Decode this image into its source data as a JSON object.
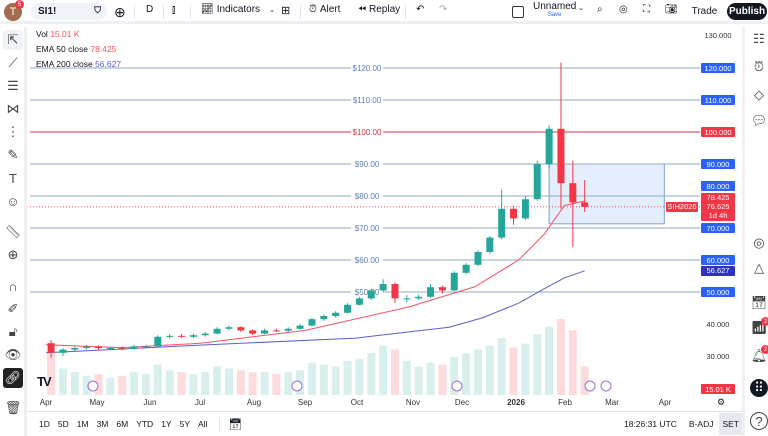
{
  "header": {
    "avatar_letter": "T",
    "avatar_badge": "5",
    "symbol": "SI1!",
    "interval": "D",
    "indicators": "Indicators",
    "alert": "Alert",
    "replay": "Replay",
    "layout_name": "Unnamed",
    "layout_save": "Save",
    "trade": "Trade",
    "publish": "Publish"
  },
  "legend": {
    "vol_label": "Vol",
    "vol_value": "15.01 K",
    "ema50_label": "EMA 50 close",
    "ema50_value": "78.425",
    "ema200_label": "EMA 200 close",
    "ema200_value": "56.627"
  },
  "colors": {
    "up": "#26a69a",
    "down": "#f23645",
    "ema50": "#f7525f",
    "ema200": "#5b5fc7",
    "hline": "#8fa9c4",
    "hline_red": "#d3343f",
    "box_fill": "#dbe7fb",
    "accent": "#2962ff"
  },
  "price_axis": {
    "ticks": [
      "130.000",
      "40.000",
      "30.000"
    ],
    "labels": [
      {
        "text": "120.000",
        "style": "blue",
        "price": 120
      },
      {
        "text": "110.000",
        "style": "blue",
        "price": 110
      },
      {
        "text": "100.000",
        "style": "red",
        "price": 100
      },
      {
        "text": "90.000",
        "style": "blue",
        "price": 90
      },
      {
        "text": "80.000",
        "style": "blue",
        "price": 80
      },
      {
        "text": "70.000",
        "style": "blue",
        "price": 70
      },
      {
        "text": "60.000",
        "style": "blue",
        "price": 60
      },
      {
        "text": "56.627",
        "style": "indigo",
        "price": 56.627
      },
      {
        "text": "50.000",
        "style": "blue",
        "price": 50
      }
    ],
    "last": {
      "ema50": "78.425",
      "price": "76.625",
      "countdown": "1d 4h",
      "contract": "SIH2026"
    },
    "volume": "15.01 K"
  },
  "hlines": [
    {
      "price": 120,
      "label": "$120.00"
    },
    {
      "price": 110,
      "label": "$110.00"
    },
    {
      "price": 100,
      "label": "$100.00",
      "red": true
    },
    {
      "price": 90,
      "label": "$90.00"
    },
    {
      "price": 80,
      "label": "$80.00"
    },
    {
      "price": 70,
      "label": "$70.00"
    },
    {
      "price": 60,
      "label": "$60.00"
    },
    {
      "price": 50,
      "label": "$50.00"
    }
  ],
  "rectangle": {
    "from": "2026-01-23",
    "to": "2026-04-01",
    "top": 90,
    "bottom": 71.3
  },
  "time_axis": [
    "Apr",
    "May",
    "Jun",
    "Jul",
    "Aug",
    "Sep",
    "Oct",
    "Nov",
    "Dec",
    "2026",
    "Feb",
    "Mar",
    "Apr"
  ],
  "bottom_bar": {
    "ranges": [
      "1D",
      "5D",
      "1M",
      "3M",
      "6M",
      "YTD",
      "1Y",
      "5Y",
      "All"
    ],
    "time": "18:26:31 UTC",
    "badj": "B-ADJ",
    "set": "SET"
  },
  "chart_data": {
    "type": "candlestick",
    "note_interval": "weekly approximation",
    "candles": [
      [
        "2025-04-04",
        34,
        35,
        29.5,
        31
      ],
      [
        "2025-04-11",
        31,
        32.5,
        30,
        32
      ],
      [
        "2025-04-18",
        32,
        33,
        31.5,
        32.5
      ],
      [
        "2025-04-25",
        32.5,
        33.5,
        32,
        33
      ],
      [
        "2025-05-02",
        33,
        33.3,
        32,
        32.5
      ],
      [
        "2025-05-09",
        32.5,
        33,
        32,
        32.5
      ],
      [
        "2025-05-16",
        32.5,
        33,
        31.8,
        32.3
      ],
      [
        "2025-05-23",
        32.3,
        33.5,
        32,
        33
      ],
      [
        "2025-05-30",
        33,
        33.5,
        32.5,
        33
      ],
      [
        "2025-06-06",
        33,
        36.5,
        33,
        36
      ],
      [
        "2025-06-13",
        36,
        36.8,
        35.5,
        36.3
      ],
      [
        "2025-06-20",
        36.3,
        36.8,
        35.5,
        36
      ],
      [
        "2025-06-27",
        36,
        37,
        35.6,
        36.5
      ],
      [
        "2025-07-04",
        36.5,
        37.5,
        36,
        37
      ],
      [
        "2025-07-11",
        37,
        39,
        36.8,
        38.5
      ],
      [
        "2025-07-18",
        38.5,
        39.5,
        38,
        39
      ],
      [
        "2025-07-25",
        39,
        39.3,
        37.5,
        38
      ],
      [
        "2025-08-01",
        38,
        38.3,
        36.5,
        37
      ],
      [
        "2025-08-08",
        37,
        38.5,
        36.8,
        38
      ],
      [
        "2025-08-15",
        38,
        38.5,
        37.5,
        37.9
      ],
      [
        "2025-08-22",
        37.9,
        39,
        37.5,
        38.5
      ],
      [
        "2025-08-29",
        38.5,
        40,
        38.2,
        39.5
      ],
      [
        "2025-09-05",
        39.5,
        42,
        39.3,
        41.5
      ],
      [
        "2025-09-12",
        41.5,
        43,
        41,
        42.5
      ],
      [
        "2025-09-19",
        42.5,
        44,
        42,
        43.5
      ],
      [
        "2025-09-26",
        43.5,
        46.5,
        43.3,
        46
      ],
      [
        "2025-10-03",
        46,
        48.5,
        45.8,
        48
      ],
      [
        "2025-10-10",
        48,
        51,
        47.5,
        50.5
      ],
      [
        "2025-10-17",
        50.5,
        54,
        50,
        52.5
      ],
      [
        "2025-10-24",
        52.5,
        53,
        46.5,
        48
      ],
      [
        "2025-10-31",
        48,
        49,
        46.8,
        48
      ],
      [
        "2025-11-07",
        48,
        49.2,
        47.5,
        48.5
      ],
      [
        "2025-11-14",
        48.5,
        52.5,
        48.2,
        51.5
      ],
      [
        "2025-11-21",
        51.5,
        52,
        49.5,
        50.5
      ],
      [
        "2025-11-28",
        50.5,
        56.5,
        50.3,
        56
      ],
      [
        "2025-12-05",
        56,
        59,
        55.5,
        58.5
      ],
      [
        "2025-12-12",
        58.5,
        63,
        58,
        62.5
      ],
      [
        "2025-12-19",
        62.5,
        67.5,
        62,
        67
      ],
      [
        "2025-12-26",
        67,
        82,
        66.5,
        76
      ],
      [
        "2026-01-02",
        76,
        77,
        71,
        73
      ],
      [
        "2026-01-09",
        73,
        80,
        72.5,
        79
      ],
      [
        "2026-01-16",
        79,
        91,
        78.5,
        90
      ],
      [
        "2026-01-23",
        90,
        102,
        88.5,
        101
      ],
      [
        "2026-01-30",
        101,
        121.6,
        76,
        84
      ],
      [
        "2026-02-06",
        84,
        91,
        64,
        78
      ],
      [
        "2026-02-13",
        78,
        85,
        75,
        76.6
      ]
    ],
    "volume_k": [
      22,
      14,
      12,
      10,
      11,
      9,
      10,
      12,
      11,
      16,
      13,
      12,
      11,
      12,
      15,
      14,
      13,
      12,
      12,
      11,
      12,
      13,
      17,
      16,
      15,
      18,
      19,
      22,
      26,
      24,
      18,
      15,
      17,
      16,
      20,
      22,
      24,
      26,
      30,
      25,
      27,
      32,
      36,
      40,
      34,
      15.01
    ],
    "ema50": [
      [
        "2025-04-01",
        33.5
      ],
      [
        "2025-05-15",
        32.6
      ],
      [
        "2025-07-01",
        34
      ],
      [
        "2025-09-01",
        38
      ],
      [
        "2025-11-01",
        45.3
      ],
      [
        "2025-12-10",
        51.6
      ],
      [
        "2026-01-05",
        60
      ],
      [
        "2026-01-20",
        68
      ],
      [
        "2026-02-01",
        77
      ],
      [
        "2026-02-13",
        78.425
      ]
    ],
    "ema200": [
      [
        "2025-04-01",
        31
      ],
      [
        "2025-07-01",
        33.4
      ],
      [
        "2025-10-01",
        35.6
      ],
      [
        "2025-11-25",
        39
      ],
      [
        "2025-12-15",
        42
      ],
      [
        "2026-01-05",
        46.5
      ],
      [
        "2026-01-20",
        51
      ],
      [
        "2026-02-01",
        54.4
      ],
      [
        "2026-02-13",
        56.627
      ]
    ],
    "y_range": [
      25,
      132
    ],
    "y_scale": "linear",
    "grid": false
  }
}
